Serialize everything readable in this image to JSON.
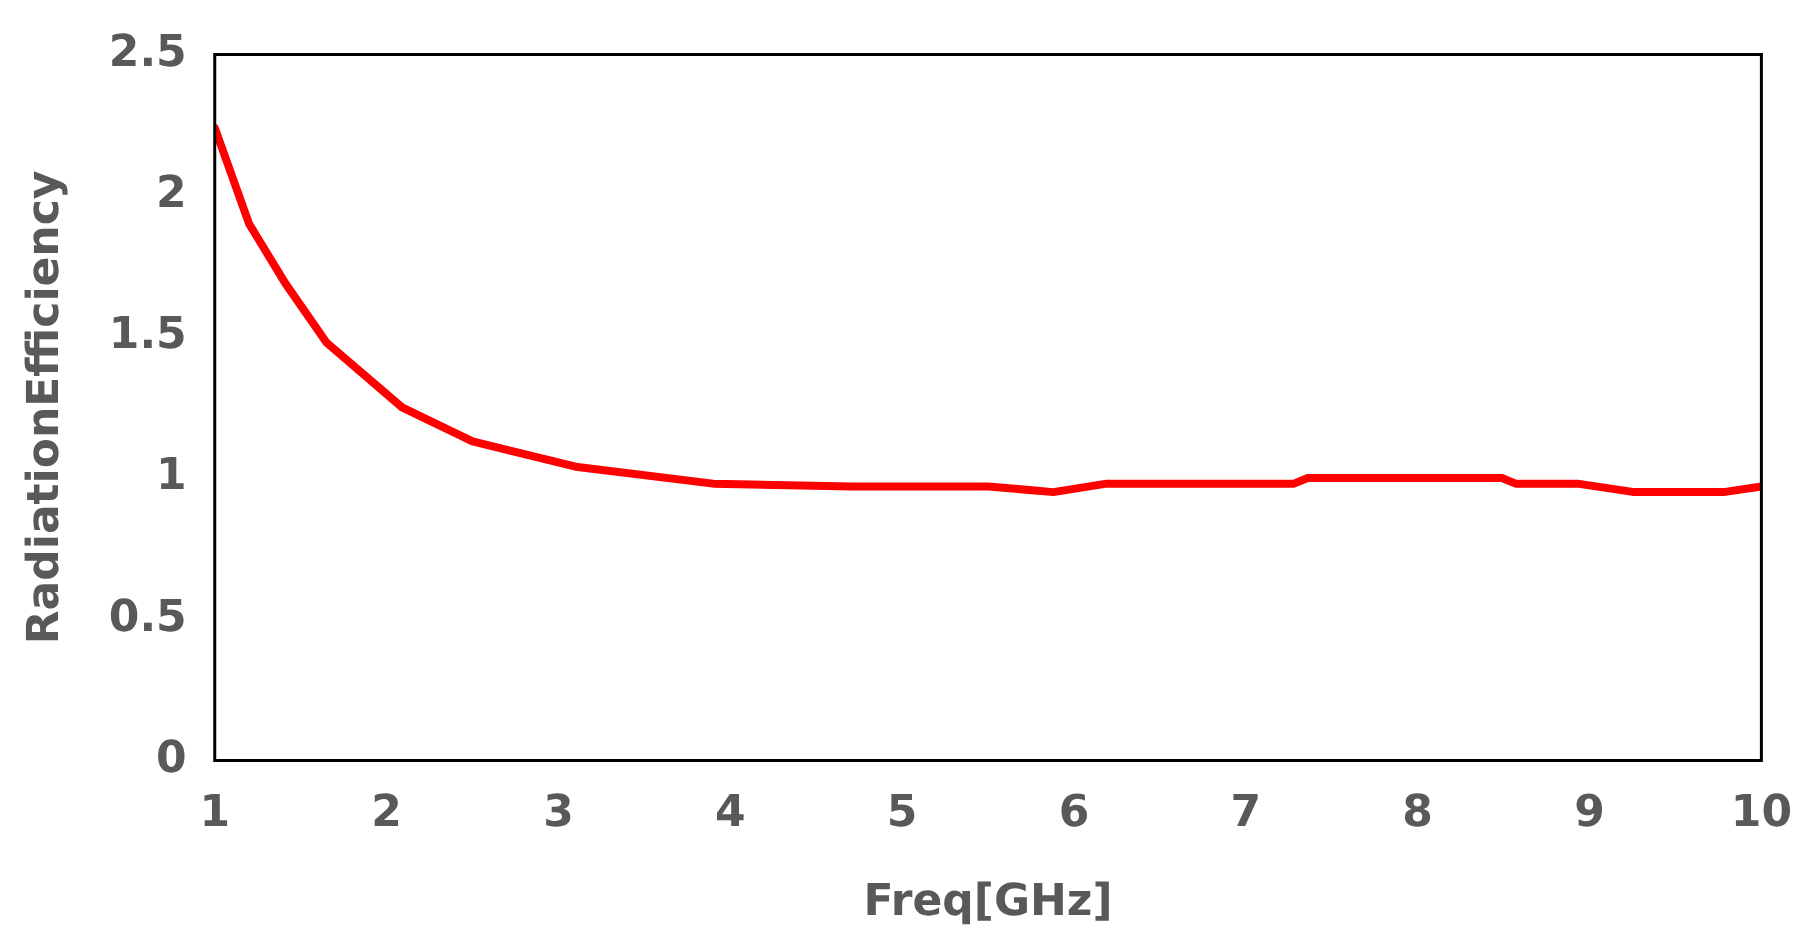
{
  "chart_data": {
    "type": "line",
    "xlabel": "Freq[GHz]",
    "ylabel": "RadiationEfficiency",
    "series": [
      {
        "color": "#ff0000",
        "x": [
          1,
          1.2,
          1.41,
          1.65,
          2.09,
          2.5,
          3.1,
          3.9,
          4.71,
          5.5,
          5.88,
          6.19,
          7.28,
          7.36,
          8.49,
          8.57,
          8.93,
          9.26,
          9.78,
          10
        ],
        "values": [
          2.24,
          1.9,
          1.69,
          1.48,
          1.25,
          1.13,
          1.04,
          0.98,
          0.97,
          0.97,
          0.95,
          0.98,
          0.98,
          1.0,
          1.0,
          0.98,
          0.98,
          0.95,
          0.95,
          0.97
        ]
      }
    ],
    "xlim": [
      1,
      10
    ],
    "xticks": [
      1,
      2,
      3,
      4,
      5,
      6,
      7,
      8,
      9,
      10
    ],
    "ylim": [
      0,
      2.5
    ],
    "yticks": [
      0,
      0.5,
      1,
      1.5,
      2,
      2.5
    ],
    "grid": false,
    "legend": false,
    "marker": "none",
    "line_style": "solid"
  }
}
